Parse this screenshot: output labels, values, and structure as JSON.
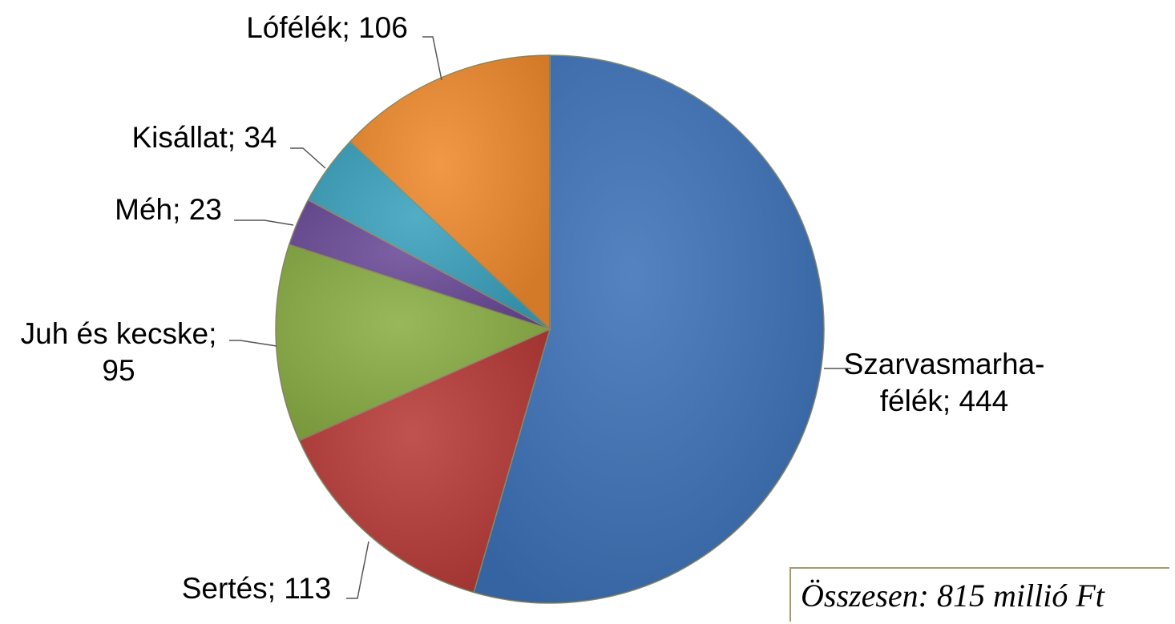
{
  "chart_data": {
    "type": "pie",
    "categories": [
      "Szarvasmarha-félék",
      "Sertés",
      "Juh és kecske",
      "Méh",
      "Kisállat",
      "Lófélék"
    ],
    "values": [
      444,
      113,
      95,
      23,
      34,
      106
    ],
    "colors": [
      "#3d72b8",
      "#b73b38",
      "#8aae45",
      "#6b4b98",
      "#3aa2bd",
      "#ef8a2e"
    ],
    "label_separator": "; ",
    "annotation": "Összesen: 815 millió Ft"
  }
}
